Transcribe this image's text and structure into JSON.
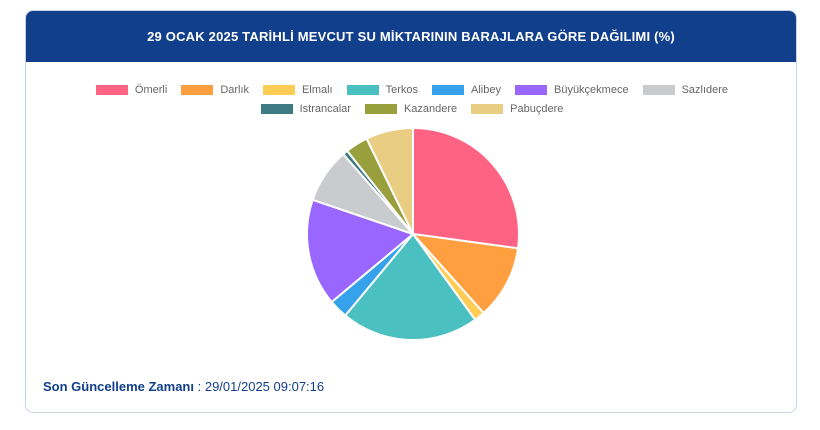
{
  "header": {
    "title": "29 OCAK 2025 TARİHLİ MEVCUT SU MİKTARININ BARAJLARA GÖRE DAĞILIMI (%)"
  },
  "footer": {
    "label": "Son Güncelleme Zamanı",
    "separator": " : ",
    "value": "29/01/2025 09:07:16"
  },
  "chart_data": {
    "type": "pie",
    "title": "29 OCAK 2025 TARİHLİ MEVCUT SU MİKTARININ BARAJLARA GÖRE DAĞILIMI (%)",
    "legend_position": "top",
    "start_angle": "top, clockwise",
    "slices": [
      {
        "name": "Ömerli",
        "value": 28.3,
        "color": "#ff6384"
      },
      {
        "name": "Darlık",
        "value": 11.7,
        "color": "#ff9f40"
      },
      {
        "name": "Elmalı",
        "value": 1.7,
        "color": "#ffcd56"
      },
      {
        "name": "Terkos",
        "value": 21.9,
        "color": "#4bc0c0"
      },
      {
        "name": "Alibey",
        "value": 3.0,
        "color": "#36a2eb"
      },
      {
        "name": "Büyükçekmece",
        "value": 17.0,
        "color": "#9966ff"
      },
      {
        "name": "Sazlıdere",
        "value": 8.7,
        "color": "#c9cbcf"
      },
      {
        "name": "Istrancalar",
        "value": 0.8,
        "color": "#3e7a82"
      },
      {
        "name": "Kazandere",
        "value": 3.6,
        "color": "#98a03e"
      },
      {
        "name": "Pabuçdere",
        "value": 7.5,
        "color": "#e8cd82"
      }
    ]
  }
}
